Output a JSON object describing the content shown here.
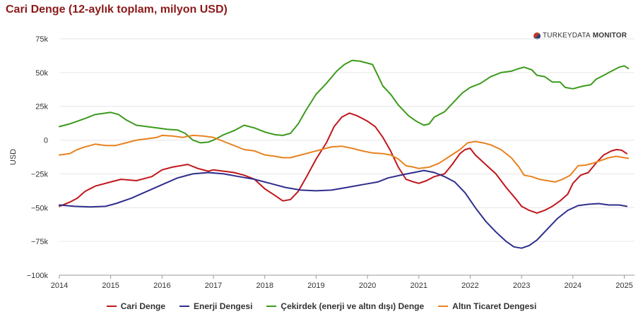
{
  "title": "Cari Denge (12-aylık toplam, milyon USD)",
  "watermark": {
    "part1": "TURKEYDATA",
    "part2": "MONITOR"
  },
  "chart_data": {
    "type": "line",
    "title": "Cari Denge (12-aylık toplam, milyon USD)",
    "xlabel": "",
    "ylabel": "USD",
    "xlim": [
      2014.0,
      2025.2
    ],
    "ylim": [
      -100000,
      75000
    ],
    "yticks": [
      75000,
      50000,
      25000,
      0,
      -25000,
      -50000,
      -75000,
      -100000
    ],
    "ytick_labels": [
      "75k",
      "50k",
      "25k",
      "0",
      "−25k",
      "−50k",
      "−75k",
      "−100k"
    ],
    "xticks": [
      2014,
      2015,
      2016,
      2017,
      2018,
      2019,
      2020,
      2021,
      2022,
      2023,
      2024,
      2025
    ],
    "xtick_labels": [
      "2014",
      "2015",
      "2016",
      "2017",
      "2018",
      "2019",
      "2020",
      "2021",
      "2022",
      "2023",
      "2024",
      "2025"
    ],
    "grid": true,
    "legend_position": "bottom",
    "series": [
      {
        "name": "Cari Denge",
        "color": "#c0161b",
        "points": [
          [
            2014.0,
            -49000
          ],
          [
            2014.2,
            -46000
          ],
          [
            2014.35,
            -43000
          ],
          [
            2014.5,
            -38000
          ],
          [
            2014.7,
            -34000
          ],
          [
            2015.0,
            -31000
          ],
          [
            2015.2,
            -29000
          ],
          [
            2015.5,
            -30000
          ],
          [
            2015.8,
            -27000
          ],
          [
            2016.0,
            -22000
          ],
          [
            2016.2,
            -20000
          ],
          [
            2016.5,
            -18000
          ],
          [
            2016.7,
            -21000
          ],
          [
            2016.9,
            -23000
          ],
          [
            2017.0,
            -22000
          ],
          [
            2017.2,
            -23000
          ],
          [
            2017.4,
            -24000
          ],
          [
            2017.6,
            -26000
          ],
          [
            2017.8,
            -29000
          ],
          [
            2018.0,
            -36000
          ],
          [
            2018.2,
            -41000
          ],
          [
            2018.35,
            -45000
          ],
          [
            2018.5,
            -44000
          ],
          [
            2018.65,
            -38000
          ],
          [
            2018.8,
            -28000
          ],
          [
            2019.0,
            -14000
          ],
          [
            2019.2,
            -2000
          ],
          [
            2019.35,
            10000
          ],
          [
            2019.5,
            17000
          ],
          [
            2019.65,
            20000
          ],
          [
            2019.8,
            18000
          ],
          [
            2020.0,
            14000
          ],
          [
            2020.15,
            10000
          ],
          [
            2020.3,
            2000
          ],
          [
            2020.45,
            -8000
          ],
          [
            2020.6,
            -20000
          ],
          [
            2020.75,
            -29000
          ],
          [
            2020.9,
            -31000
          ],
          [
            2021.0,
            -32000
          ],
          [
            2021.15,
            -30000
          ],
          [
            2021.3,
            -27000
          ],
          [
            2021.5,
            -25000
          ],
          [
            2021.65,
            -18000
          ],
          [
            2021.8,
            -10000
          ],
          [
            2021.9,
            -7000
          ],
          [
            2022.0,
            -6000
          ],
          [
            2022.1,
            -11000
          ],
          [
            2022.3,
            -18000
          ],
          [
            2022.5,
            -25000
          ],
          [
            2022.7,
            -35000
          ],
          [
            2022.9,
            -44000
          ],
          [
            2023.0,
            -49000
          ],
          [
            2023.15,
            -52000
          ],
          [
            2023.3,
            -54000
          ],
          [
            2023.45,
            -52000
          ],
          [
            2023.6,
            -49000
          ],
          [
            2023.75,
            -45000
          ],
          [
            2023.9,
            -40000
          ],
          [
            2024.0,
            -32000
          ],
          [
            2024.15,
            -26000
          ],
          [
            2024.3,
            -24000
          ],
          [
            2024.45,
            -17000
          ],
          [
            2024.6,
            -11000
          ],
          [
            2024.75,
            -8000
          ],
          [
            2024.85,
            -7000
          ],
          [
            2024.95,
            -7500
          ],
          [
            2025.05,
            -10000
          ]
        ]
      },
      {
        "name": "Enerji Dengesi",
        "color": "#2e2e8c",
        "points": [
          [
            2014.0,
            -48000
          ],
          [
            2014.3,
            -49000
          ],
          [
            2014.6,
            -49500
          ],
          [
            2014.9,
            -49000
          ],
          [
            2015.1,
            -47000
          ],
          [
            2015.4,
            -43000
          ],
          [
            2015.7,
            -38000
          ],
          [
            2016.0,
            -33000
          ],
          [
            2016.3,
            -28000
          ],
          [
            2016.6,
            -25000
          ],
          [
            2016.9,
            -24000
          ],
          [
            2017.2,
            -25000
          ],
          [
            2017.5,
            -27000
          ],
          [
            2017.8,
            -29000
          ],
          [
            2018.1,
            -32000
          ],
          [
            2018.4,
            -35000
          ],
          [
            2018.7,
            -37000
          ],
          [
            2019.0,
            -37500
          ],
          [
            2019.3,
            -37000
          ],
          [
            2019.6,
            -35000
          ],
          [
            2019.9,
            -33000
          ],
          [
            2020.2,
            -31000
          ],
          [
            2020.4,
            -28000
          ],
          [
            2020.7,
            -25500
          ],
          [
            2020.9,
            -24000
          ],
          [
            2021.1,
            -22500
          ],
          [
            2021.3,
            -24000
          ],
          [
            2021.5,
            -27000
          ],
          [
            2021.7,
            -31000
          ],
          [
            2021.9,
            -39000
          ],
          [
            2022.1,
            -50000
          ],
          [
            2022.3,
            -60000
          ],
          [
            2022.5,
            -68000
          ],
          [
            2022.7,
            -75000
          ],
          [
            2022.85,
            -79000
          ],
          [
            2023.0,
            -80000
          ],
          [
            2023.15,
            -78000
          ],
          [
            2023.3,
            -74000
          ],
          [
            2023.5,
            -66000
          ],
          [
            2023.7,
            -58000
          ],
          [
            2023.9,
            -52000
          ],
          [
            2024.1,
            -48500
          ],
          [
            2024.3,
            -47500
          ],
          [
            2024.5,
            -47000
          ],
          [
            2024.7,
            -48000
          ],
          [
            2024.9,
            -48000
          ],
          [
            2025.05,
            -49000
          ]
        ]
      },
      {
        "name": "Çekirdek (enerji ve altın dışı) Denge",
        "color": "#3c9a1c",
        "points": [
          [
            2014.0,
            10000
          ],
          [
            2014.2,
            12000
          ],
          [
            2014.35,
            14000
          ],
          [
            2014.5,
            16000
          ],
          [
            2014.7,
            19000
          ],
          [
            2014.9,
            20000
          ],
          [
            2015.0,
            20500
          ],
          [
            2015.15,
            19000
          ],
          [
            2015.3,
            15000
          ],
          [
            2015.5,
            11000
          ],
          [
            2015.7,
            10000
          ],
          [
            2015.9,
            9000
          ],
          [
            2016.1,
            8000
          ],
          [
            2016.3,
            7500
          ],
          [
            2016.45,
            5000
          ],
          [
            2016.6,
            0
          ],
          [
            2016.75,
            -2000
          ],
          [
            2016.9,
            -1500
          ],
          [
            2017.0,
            0
          ],
          [
            2017.2,
            4000
          ],
          [
            2017.4,
            7000
          ],
          [
            2017.6,
            11000
          ],
          [
            2017.8,
            9000
          ],
          [
            2018.0,
            6000
          ],
          [
            2018.2,
            4000
          ],
          [
            2018.35,
            3500
          ],
          [
            2018.5,
            5000
          ],
          [
            2018.65,
            12000
          ],
          [
            2018.8,
            22000
          ],
          [
            2019.0,
            34000
          ],
          [
            2019.2,
            42000
          ],
          [
            2019.4,
            51000
          ],
          [
            2019.55,
            56000
          ],
          [
            2019.7,
            59000
          ],
          [
            2019.85,
            58500
          ],
          [
            2020.0,
            57000
          ],
          [
            2020.1,
            56000
          ],
          [
            2020.2,
            48000
          ],
          [
            2020.3,
            40000
          ],
          [
            2020.45,
            34000
          ],
          [
            2020.6,
            26000
          ],
          [
            2020.8,
            18000
          ],
          [
            2020.95,
            14000
          ],
          [
            2021.1,
            11000
          ],
          [
            2021.2,
            12000
          ],
          [
            2021.3,
            17000
          ],
          [
            2021.5,
            21000
          ],
          [
            2021.7,
            29000
          ],
          [
            2021.85,
            35000
          ],
          [
            2022.0,
            39000
          ],
          [
            2022.2,
            42000
          ],
          [
            2022.4,
            47000
          ],
          [
            2022.6,
            50000
          ],
          [
            2022.8,
            51000
          ],
          [
            2022.95,
            53000
          ],
          [
            2023.05,
            54000
          ],
          [
            2023.2,
            52000
          ],
          [
            2023.3,
            48000
          ],
          [
            2023.45,
            47000
          ],
          [
            2023.6,
            43000
          ],
          [
            2023.75,
            43000
          ],
          [
            2023.85,
            39000
          ],
          [
            2024.0,
            38000
          ],
          [
            2024.2,
            40000
          ],
          [
            2024.35,
            41000
          ],
          [
            2024.45,
            45000
          ],
          [
            2024.6,
            48000
          ],
          [
            2024.75,
            51000
          ],
          [
            2024.9,
            54000
          ],
          [
            2025.0,
            55000
          ],
          [
            2025.08,
            53000
          ]
        ]
      },
      {
        "name": "Altın Ticaret Dengesi",
        "color": "#e8821e",
        "points": [
          [
            2014.0,
            -11000
          ],
          [
            2014.2,
            -10000
          ],
          [
            2014.35,
            -7000
          ],
          [
            2014.5,
            -5000
          ],
          [
            2014.7,
            -3000
          ],
          [
            2014.9,
            -4000
          ],
          [
            2015.1,
            -4000
          ],
          [
            2015.3,
            -2000
          ],
          [
            2015.5,
            0
          ],
          [
            2015.7,
            1000
          ],
          [
            2015.9,
            2000
          ],
          [
            2016.0,
            3500
          ],
          [
            2016.2,
            3000
          ],
          [
            2016.4,
            2000
          ],
          [
            2016.6,
            3500
          ],
          [
            2016.8,
            3000
          ],
          [
            2017.0,
            2000
          ],
          [
            2017.2,
            -1000
          ],
          [
            2017.4,
            -4000
          ],
          [
            2017.6,
            -7000
          ],
          [
            2017.8,
            -8000
          ],
          [
            2018.0,
            -11000
          ],
          [
            2018.2,
            -12000
          ],
          [
            2018.35,
            -13000
          ],
          [
            2018.5,
            -13000
          ],
          [
            2018.7,
            -11000
          ],
          [
            2018.9,
            -9000
          ],
          [
            2019.1,
            -7000
          ],
          [
            2019.3,
            -5000
          ],
          [
            2019.5,
            -4500
          ],
          [
            2019.7,
            -6000
          ],
          [
            2019.9,
            -8000
          ],
          [
            2020.1,
            -9500
          ],
          [
            2020.3,
            -10000
          ],
          [
            2020.45,
            -11000
          ],
          [
            2020.6,
            -14000
          ],
          [
            2020.75,
            -19000
          ],
          [
            2020.9,
            -20000
          ],
          [
            2021.0,
            -21000
          ],
          [
            2021.2,
            -20000
          ],
          [
            2021.4,
            -17000
          ],
          [
            2021.6,
            -12000
          ],
          [
            2021.8,
            -7000
          ],
          [
            2021.95,
            -2000
          ],
          [
            2022.1,
            -1000
          ],
          [
            2022.25,
            -2000
          ],
          [
            2022.4,
            -3500
          ],
          [
            2022.6,
            -7000
          ],
          [
            2022.8,
            -13000
          ],
          [
            2022.95,
            -20000
          ],
          [
            2023.05,
            -26000
          ],
          [
            2023.2,
            -27000
          ],
          [
            2023.35,
            -29000
          ],
          [
            2023.5,
            -30000
          ],
          [
            2023.65,
            -31000
          ],
          [
            2023.8,
            -29000
          ],
          [
            2023.95,
            -26000
          ],
          [
            2024.1,
            -19000
          ],
          [
            2024.25,
            -18500
          ],
          [
            2024.4,
            -17000
          ],
          [
            2024.55,
            -15000
          ],
          [
            2024.7,
            -13000
          ],
          [
            2024.85,
            -12000
          ],
          [
            2025.0,
            -13000
          ],
          [
            2025.08,
            -13500
          ]
        ]
      }
    ]
  }
}
